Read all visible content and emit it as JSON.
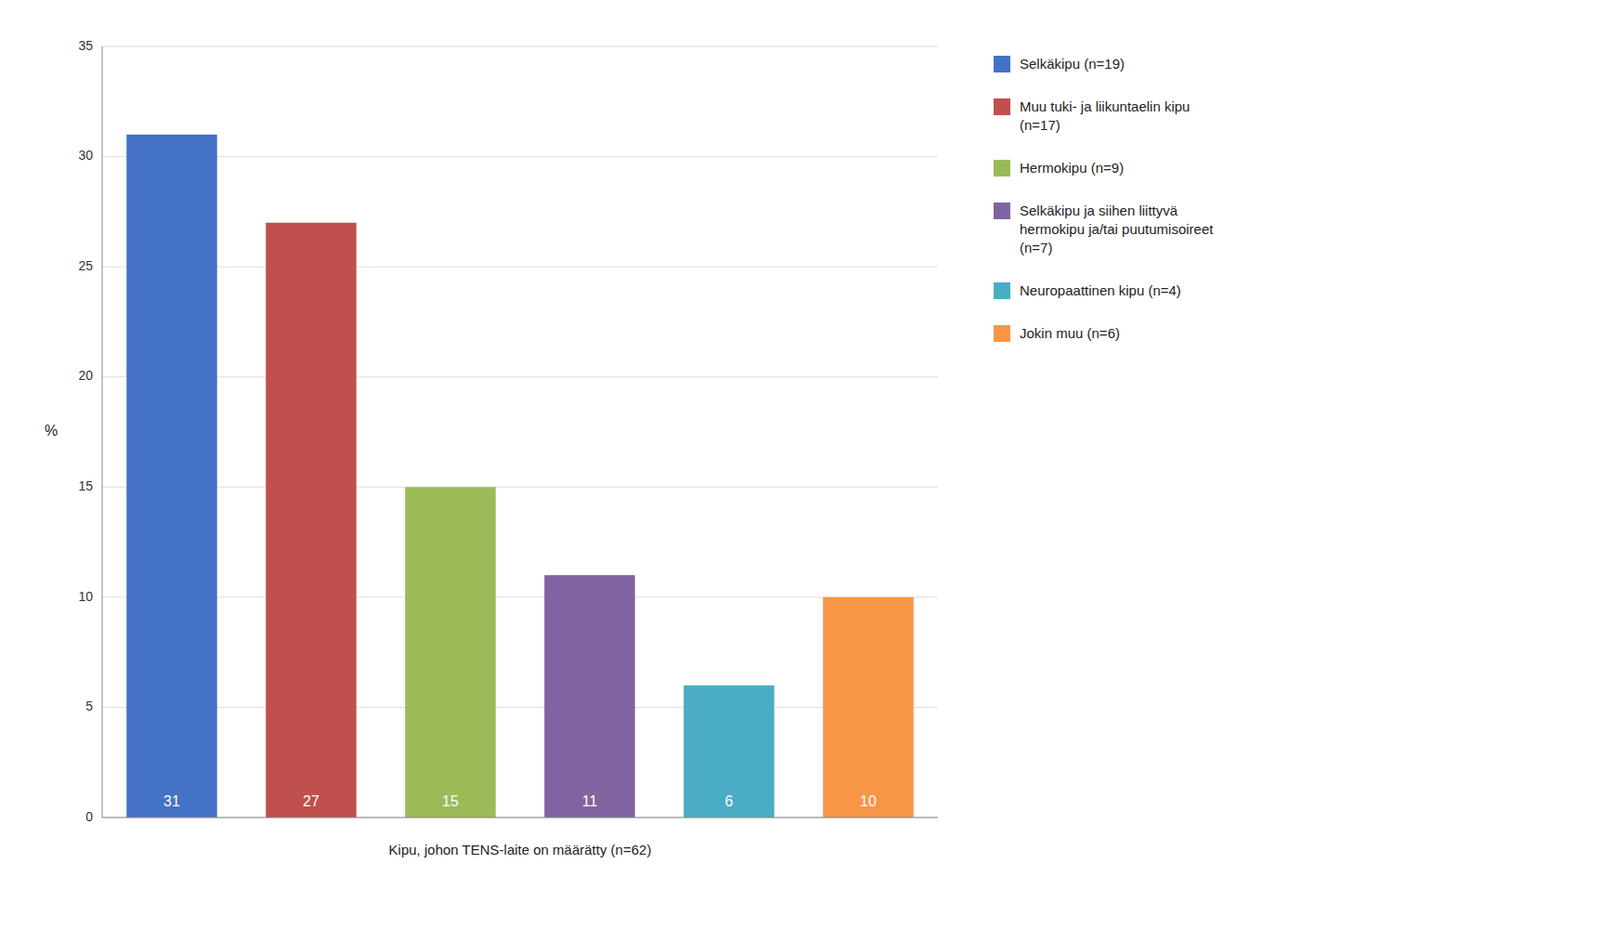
{
  "chart_data": {
    "type": "bar",
    "categories": [
      "Selkäkipu (n=19)",
      "Muu tuki- ja liikuntaelin kipu\n  (n=17)",
      "Hermokipu (n=9)",
      "Selkäkipu ja siihen liittyvä\nhermokipu ja/tai puutumisoireet\n(n=7)",
      "Neuropaattinen kipu (n=4)",
      "Jokin muu (n=6)"
    ],
    "values": [
      31,
      27,
      15,
      11,
      6,
      10
    ],
    "colors": [
      "#4472C4",
      "#C0504D",
      "#9BBB59",
      "#8064A2",
      "#4BACC6",
      "#F79646"
    ],
    "ylabel": "%",
    "xlabel": "Kipu, johon TENS-laite on määrätty (n=62)",
    "ylim": [
      0,
      35
    ],
    "yticks": [
      0,
      5,
      10,
      15,
      20,
      25,
      30,
      35
    ],
    "grid": true,
    "legend": "right",
    "data_labels": true,
    "tick_labels": "y"
  }
}
